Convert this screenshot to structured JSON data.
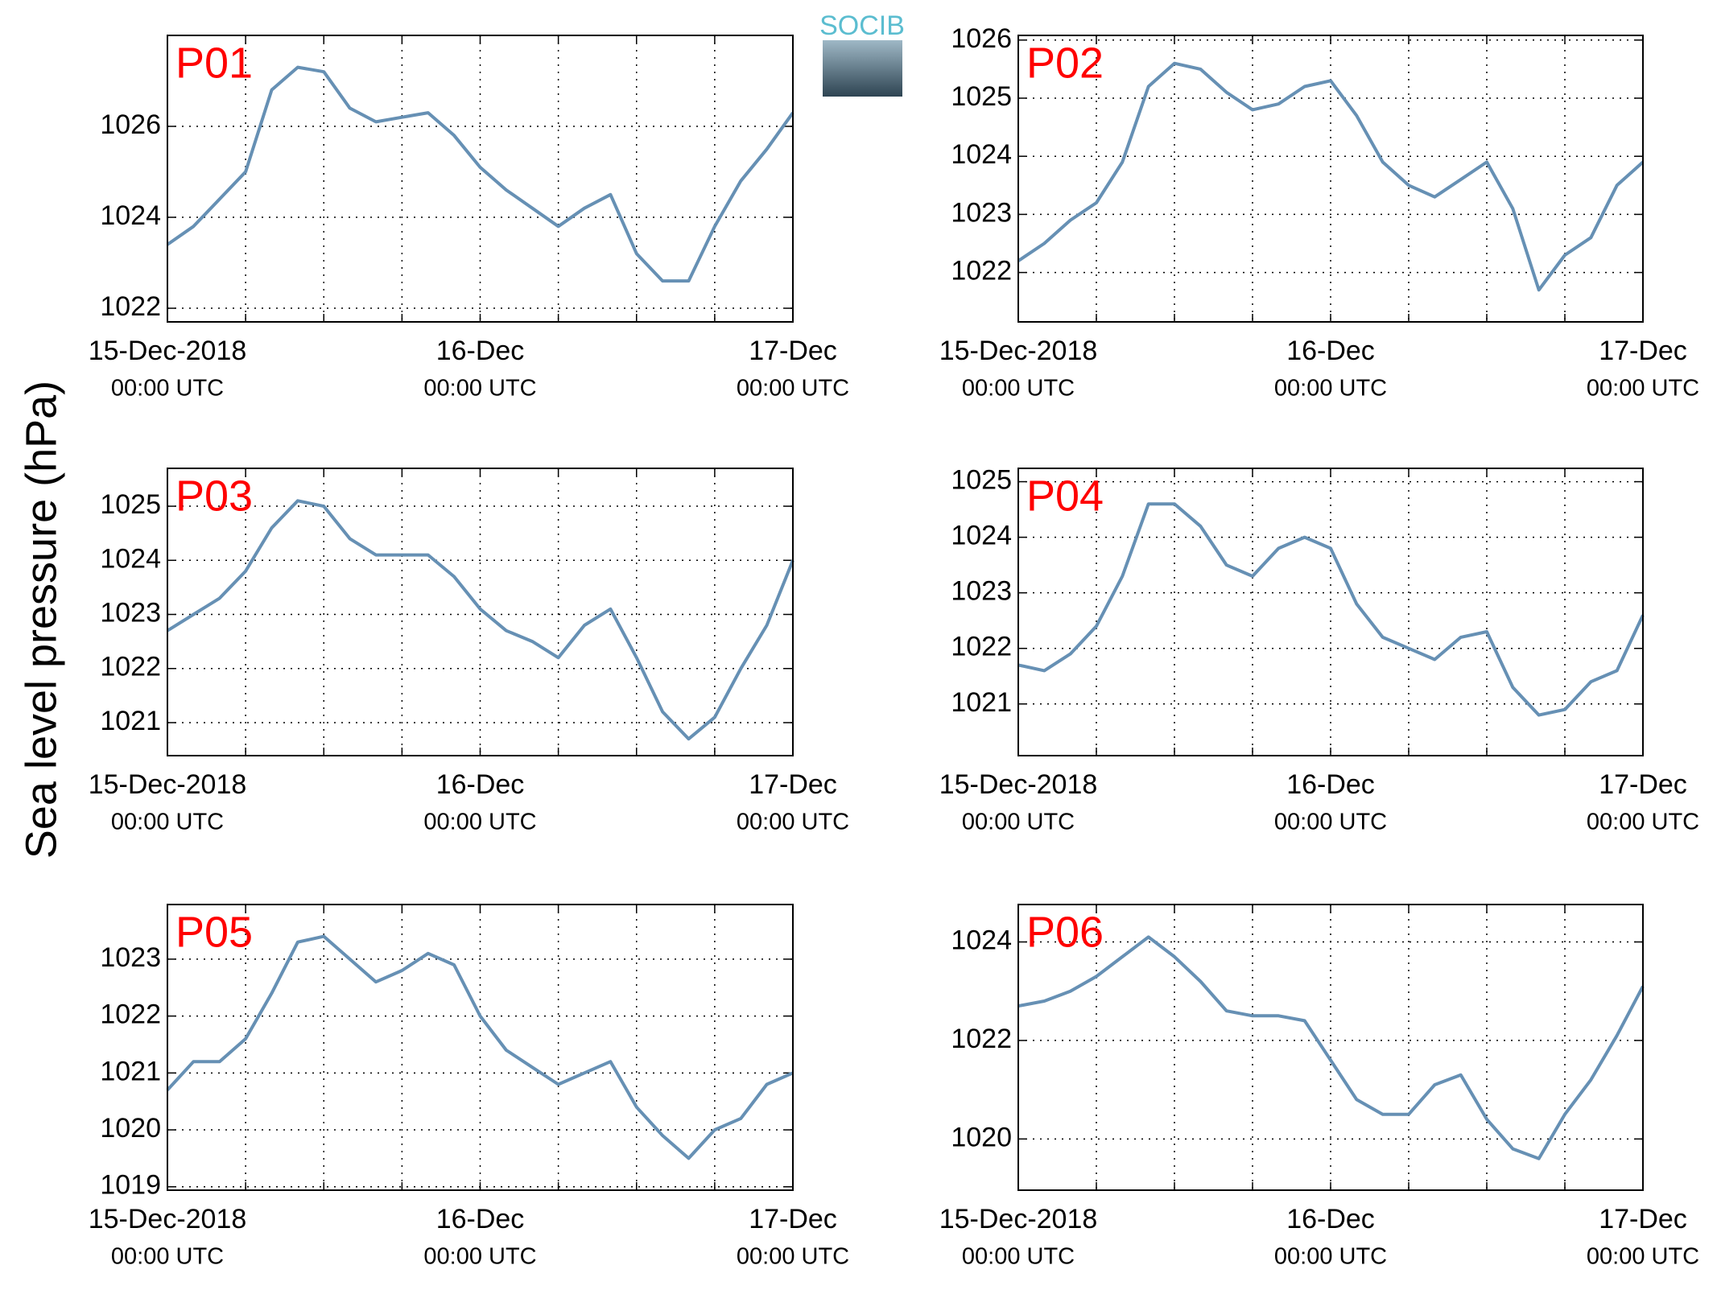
{
  "ylabel": "Sea level pressure (hPa)",
  "logo": "SOCIB",
  "chart_data": [
    {
      "type": "line",
      "title": "P01",
      "color": "#6690b4",
      "grid": true,
      "x": [
        0,
        2,
        4,
        6,
        8,
        10,
        12,
        14,
        16,
        18,
        20,
        22,
        24,
        26,
        28,
        30,
        32,
        34,
        36,
        38,
        40,
        42,
        44,
        46,
        48
      ],
      "values": [
        1023.4,
        1023.8,
        1024.4,
        1025,
        1026.8,
        1027.3,
        1027.2,
        1026.4,
        1026.1,
        1026.2,
        1026.3,
        1025.8,
        1025.1,
        1024.6,
        1024.2,
        1023.8,
        1024.2,
        1024.5,
        1023.2,
        1022.6,
        1022.6,
        1023.8,
        1024.8,
        1025.5,
        1026.3
      ],
      "xlim": [
        0,
        48
      ],
      "ylim": [
        1021.7,
        1028
      ],
      "yticks": [
        1022,
        1024,
        1026
      ],
      "xticks": [
        {
          "value": 0,
          "label": "15-Dec-2018",
          "sublabel": "00:00 UTC"
        },
        {
          "value": 6,
          "label": null
        },
        {
          "value": 12,
          "label": null
        },
        {
          "value": 18,
          "label": null
        },
        {
          "value": 24,
          "label": "16-Dec",
          "sublabel": "00:00 UTC"
        },
        {
          "value": 30,
          "label": null
        },
        {
          "value": 36,
          "label": null
        },
        {
          "value": 42,
          "label": null
        },
        {
          "value": 48,
          "label": "17-Dec",
          "sublabel": "00:00 UTC"
        }
      ]
    },
    {
      "type": "line",
      "title": "P02",
      "color": "#6690b4",
      "grid": true,
      "x": [
        0,
        2,
        4,
        6,
        8,
        10,
        12,
        14,
        16,
        18,
        20,
        22,
        24,
        26,
        28,
        30,
        32,
        34,
        36,
        38,
        40,
        42,
        44,
        46,
        48
      ],
      "values": [
        1022.2,
        1022.5,
        1022.9,
        1023.2,
        1023.9,
        1025.2,
        1025.6,
        1025.5,
        1025.1,
        1024.8,
        1024.9,
        1025.2,
        1025.3,
        1024.7,
        1023.9,
        1023.5,
        1023.3,
        1023.6,
        1023.9,
        1023.1,
        1021.7,
        1022.3,
        1022.6,
        1023.5,
        1023.9
      ],
      "xlim": [
        0,
        48
      ],
      "ylim": [
        1021.15,
        1026.08
      ],
      "yticks": [
        1022,
        1023,
        1024,
        1025,
        1026
      ],
      "xticks": [
        {
          "value": 0,
          "label": "15-Dec-2018",
          "sublabel": "00:00 UTC"
        },
        {
          "value": 6,
          "label": null
        },
        {
          "value": 12,
          "label": null
        },
        {
          "value": 18,
          "label": null
        },
        {
          "value": 24,
          "label": "16-Dec",
          "sublabel": "00:00 UTC"
        },
        {
          "value": 30,
          "label": null
        },
        {
          "value": 36,
          "label": null
        },
        {
          "value": 42,
          "label": null
        },
        {
          "value": 48,
          "label": "17-Dec",
          "sublabel": "00:00 UTC"
        }
      ]
    },
    {
      "type": "line",
      "title": "P03",
      "color": "#6690b4",
      "grid": true,
      "x": [
        0,
        2,
        4,
        6,
        8,
        10,
        12,
        14,
        16,
        18,
        20,
        22,
        24,
        26,
        28,
        30,
        32,
        34,
        36,
        38,
        40,
        42,
        44,
        46,
        48
      ],
      "values": [
        1022.7,
        1023,
        1023.3,
        1023.8,
        1024.6,
        1025.1,
        1025,
        1024.4,
        1024.1,
        1024.1,
        1024.1,
        1023.7,
        1023.1,
        1022.7,
        1022.5,
        1022.2,
        1022.8,
        1023.1,
        1022.2,
        1021.2,
        1020.7,
        1021.1,
        1022,
        1022.8,
        1024
      ],
      "xlim": [
        0,
        48
      ],
      "ylim": [
        1020.39,
        1025.7
      ],
      "yticks": [
        1021,
        1022,
        1023,
        1024,
        1025
      ],
      "xticks": [
        {
          "value": 0,
          "label": "15-Dec-2018",
          "sublabel": "00:00 UTC"
        },
        {
          "value": 6,
          "label": null
        },
        {
          "value": 12,
          "label": null
        },
        {
          "value": 18,
          "label": null
        },
        {
          "value": 24,
          "label": "16-Dec",
          "sublabel": "00:00 UTC"
        },
        {
          "value": 30,
          "label": null
        },
        {
          "value": 36,
          "label": null
        },
        {
          "value": 42,
          "label": null
        },
        {
          "value": 48,
          "label": "17-Dec",
          "sublabel": "00:00 UTC"
        }
      ]
    },
    {
      "type": "line",
      "title": "P04",
      "color": "#6690b4",
      "grid": true,
      "x": [
        0,
        2,
        4,
        6,
        8,
        10,
        12,
        14,
        16,
        18,
        20,
        22,
        24,
        26,
        28,
        30,
        32,
        34,
        36,
        38,
        40,
        42,
        44,
        46,
        48
      ],
      "values": [
        1021.7,
        1021.6,
        1021.9,
        1022.4,
        1023.3,
        1024.6,
        1024.6,
        1024.2,
        1023.5,
        1023.3,
        1023.8,
        1024,
        1023.8,
        1022.8,
        1022.2,
        1022,
        1021.8,
        1022.2,
        1022.3,
        1021.3,
        1020.8,
        1020.9,
        1021.4,
        1021.6,
        1022.6
      ],
      "xlim": [
        0,
        48
      ],
      "ylim": [
        1020.07,
        1025.24
      ],
      "yticks": [
        1021,
        1022,
        1023,
        1024,
        1025
      ],
      "xticks": [
        {
          "value": 0,
          "label": "15-Dec-2018",
          "sublabel": "00:00 UTC"
        },
        {
          "value": 6,
          "label": null
        },
        {
          "value": 12,
          "label": null
        },
        {
          "value": 18,
          "label": null
        },
        {
          "value": 24,
          "label": "16-Dec",
          "sublabel": "00:00 UTC"
        },
        {
          "value": 30,
          "label": null
        },
        {
          "value": 36,
          "label": null
        },
        {
          "value": 42,
          "label": null
        },
        {
          "value": 48,
          "label": "17-Dec",
          "sublabel": "00:00 UTC"
        }
      ]
    },
    {
      "type": "line",
      "title": "P05",
      "color": "#6690b4",
      "grid": true,
      "x": [
        0,
        2,
        4,
        6,
        8,
        10,
        12,
        14,
        16,
        18,
        20,
        22,
        24,
        26,
        28,
        30,
        32,
        34,
        36,
        38,
        40,
        42,
        44,
        46,
        48
      ],
      "values": [
        1020.7,
        1021.2,
        1021.2,
        1021.6,
        1022.4,
        1023.3,
        1023.4,
        1023,
        1022.6,
        1022.8,
        1023.1,
        1022.9,
        1022,
        1021.4,
        1021.1,
        1020.8,
        1021,
        1021.2,
        1020.4,
        1019.9,
        1019.5,
        1020,
        1020.2,
        1020.8,
        1021
      ],
      "xlim": [
        0,
        48
      ],
      "ylim": [
        1018.94,
        1023.96
      ],
      "yticks": [
        1019,
        1020,
        1021,
        1022,
        1023
      ],
      "xticks": [
        {
          "value": 0,
          "label": "15-Dec-2018",
          "sublabel": "00:00 UTC"
        },
        {
          "value": 6,
          "label": null
        },
        {
          "value": 12,
          "label": null
        },
        {
          "value": 18,
          "label": null
        },
        {
          "value": 24,
          "label": "16-Dec",
          "sublabel": "00:00 UTC"
        },
        {
          "value": 30,
          "label": null
        },
        {
          "value": 36,
          "label": null
        },
        {
          "value": 42,
          "label": null
        },
        {
          "value": 48,
          "label": "17-Dec",
          "sublabel": "00:00 UTC"
        }
      ]
    },
    {
      "type": "line",
      "title": "P06",
      "color": "#6690b4",
      "grid": true,
      "x": [
        0,
        2,
        4,
        6,
        8,
        10,
        12,
        14,
        16,
        18,
        20,
        22,
        24,
        26,
        28,
        30,
        32,
        34,
        36,
        38,
        40,
        42,
        44,
        46,
        48
      ],
      "values": [
        1022.7,
        1022.8,
        1023,
        1023.3,
        1023.7,
        1024.1,
        1023.7,
        1023.2,
        1022.6,
        1022.5,
        1022.5,
        1022.4,
        1021.6,
        1020.8,
        1020.5,
        1020.5,
        1021.1,
        1021.3,
        1020.4,
        1019.8,
        1019.6,
        1020.5,
        1021.2,
        1022.1,
        1023.1
      ],
      "xlim": [
        0,
        48
      ],
      "ylim": [
        1018.96,
        1024.76
      ],
      "yticks": [
        1020,
        1022,
        1024
      ],
      "xticks": [
        {
          "value": 0,
          "label": "15-Dec-2018",
          "sublabel": "00:00 UTC"
        },
        {
          "value": 6,
          "label": null
        },
        {
          "value": 12,
          "label": null
        },
        {
          "value": 18,
          "label": null
        },
        {
          "value": 24,
          "label": "16-Dec",
          "sublabel": "00:00 UTC"
        },
        {
          "value": 30,
          "label": null
        },
        {
          "value": 36,
          "label": null
        },
        {
          "value": 42,
          "label": null
        },
        {
          "value": 48,
          "label": "17-Dec",
          "sublabel": "00:00 UTC"
        }
      ]
    }
  ]
}
